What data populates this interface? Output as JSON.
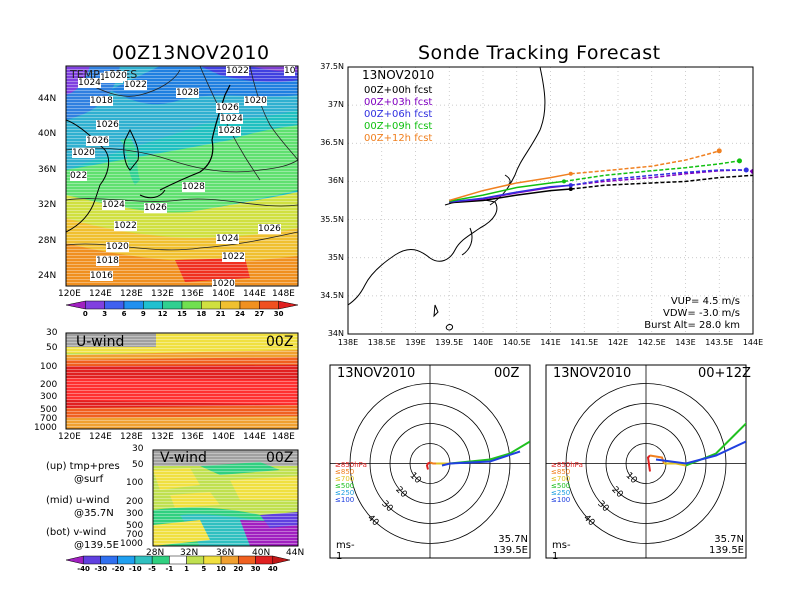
{
  "titles": {
    "left": "00Z13NOV2010",
    "right": "Sonde Tracking Forecast"
  },
  "map_panel": {
    "label": "TEMP+PRES",
    "lon_ticks": [
      "120E",
      "124E",
      "128E",
      "132E",
      "136E",
      "140E",
      "144E",
      "148E"
    ],
    "lat_ticks": [
      "44N",
      "40N",
      "36N",
      "32N",
      "28N",
      "24N"
    ],
    "isobar_labels": [
      "1020",
      "1022",
      "1018",
      "1026",
      "1028",
      "1026",
      "1024",
      "1028",
      "1020",
      "1026",
      "1020",
      "022",
      "1024",
      "1026",
      "1028",
      "1022",
      "1024",
      "1026",
      "1020",
      "1018",
      "1016",
      "1024",
      "1022",
      "1020",
      "1022",
      "1020",
      "10"
    ],
    "colorbar": {
      "ticks": [
        "0",
        "3",
        "6",
        "9",
        "12",
        "15",
        "18",
        "21",
        "24",
        "27",
        "30"
      ],
      "colors": [
        "#a020c0",
        "#8040e0",
        "#4060f0",
        "#2090f0",
        "#20c0d0",
        "#30d090",
        "#70e050",
        "#d0e040",
        "#f0c030",
        "#f09020",
        "#f05020",
        "#e02020"
      ]
    }
  },
  "uwind_panel": {
    "title": "U-wind",
    "time": "00Z",
    "y_ticks": [
      "30",
      "50",
      "100",
      "200",
      "300",
      "500",
      "700",
      "1000"
    ],
    "x_ticks": [
      "120E",
      "124E",
      "128E",
      "132E",
      "136E",
      "140E",
      "144E",
      "148E"
    ]
  },
  "vwind_panel": {
    "title": "V-wind",
    "time": "00Z",
    "y_ticks": [
      "30",
      "50",
      "100",
      "200",
      "300",
      "500",
      "700",
      "1000"
    ],
    "x_ticks": [
      "28N",
      "32N",
      "36N",
      "40N",
      "44N"
    ],
    "colorbar": {
      "ticks": [
        "-40",
        "-30",
        "-20",
        "-10",
        "-5",
        "-1",
        "1",
        "5",
        "10",
        "20",
        "30",
        "40"
      ],
      "colors": [
        "#a020c0",
        "#6040e0",
        "#3070f0",
        "#20a0f0",
        "#30c0c0",
        "#30d080",
        "#ffffff",
        "#c0e050",
        "#f0e040",
        "#f0a030",
        "#f06020",
        "#e02020",
        "#c01818"
      ]
    }
  },
  "notes": {
    "l1": "(up) tmp+pres",
    "l2": "@surf",
    "l3": "(mid) u-wind",
    "l4": "@35.7N",
    "l5": "(bot) v-wind",
    "l6": "@139.5E"
  },
  "track_panel": {
    "date": "13NOV2010",
    "legend": [
      {
        "label": "00Z+00h fcst",
        "color": "#000000"
      },
      {
        "label": "00Z+03h fcst",
        "color": "#8000c0"
      },
      {
        "label": "00Z+06h fcst",
        "color": "#3030e0"
      },
      {
        "label": "00Z+09h fcst",
        "color": "#10c010"
      },
      {
        "label": "00Z+12h fcst",
        "color": "#f08020"
      }
    ],
    "params": {
      "vup": "VUP= 4.5 m/s",
      "vdw": "VDW= -3.0 m/s",
      "burst": "Burst Alt= 28.0 km"
    },
    "x_ticks": [
      "138E",
      "138.5E",
      "139E",
      "139.5E",
      "140E",
      "140.5E",
      "141E",
      "141.5E",
      "142E",
      "142.5E",
      "143E",
      "143.5E",
      "144E"
    ],
    "y_ticks": [
      "37.5N",
      "37N",
      "36.5N",
      "36N",
      "35.5N",
      "35N",
      "34.5N",
      "34N"
    ]
  },
  "polar_left": {
    "date": "13NOV2010",
    "time": "00Z",
    "ring_labels": [
      "10",
      "20",
      "30",
      "40"
    ],
    "levels": [
      {
        "label": "≥850hPa",
        "color": "#e02020"
      },
      {
        "label": "≤850",
        "color": "#f08020"
      },
      {
        "label": "≤700",
        "color": "#e0c020"
      },
      {
        "label": "≤500",
        "color": "#20c020"
      },
      {
        "label": "≤250",
        "color": "#20a0e0"
      },
      {
        "label": "≤100",
        "color": "#2040e0"
      }
    ],
    "units": "ms-1",
    "lat": "35.7N",
    "lon": "139.5E"
  },
  "polar_right": {
    "date": "13NOV2010",
    "time": "00+12Z",
    "ring_labels": [
      "10",
      "20",
      "30",
      "40"
    ],
    "levels": [
      {
        "label": "≥850hPa",
        "color": "#e02020"
      },
      {
        "label": "≤850",
        "color": "#f08020"
      },
      {
        "label": "≤700",
        "color": "#e0c020"
      },
      {
        "label": "≤500",
        "color": "#20c020"
      },
      {
        "label": "≤250",
        "color": "#20a0e0"
      },
      {
        "label": "≤100",
        "color": "#2040e0"
      }
    ],
    "units": "ms-1",
    "lat": "35.7N",
    "lon": "139.5E"
  },
  "chart_data": {
    "type": "line",
    "title": "Sonde Tracking Forecast",
    "xlim": [
      138,
      144
    ],
    "ylim": [
      34,
      37.5
    ],
    "series": [
      {
        "name": "00Z+00h fcst",
        "color": "#000000",
        "x": [
          139.5,
          140.0,
          140.5,
          141.0,
          141.3,
          141.8,
          142.5,
          143.0,
          143.5,
          144.0,
          144.2
        ],
        "y": [
          35.72,
          35.75,
          35.82,
          35.88,
          35.9,
          35.95,
          35.98,
          36.0,
          36.05,
          36.08,
          36.07
        ]
      },
      {
        "name": "00Z+03h fcst",
        "color": "#8000c0",
        "x": [
          139.5,
          140.0,
          140.5,
          141.0,
          141.3,
          141.8,
          142.5,
          143.0,
          143.5,
          143.8,
          144.0
        ],
        "y": [
          35.73,
          35.77,
          35.85,
          35.92,
          35.95,
          36.0,
          36.05,
          36.1,
          36.14,
          36.15,
          36.13
        ]
      },
      {
        "name": "00Z+06h fcst",
        "color": "#3030e0",
        "x": [
          139.5,
          140.0,
          140.5,
          141.0,
          141.3,
          141.8,
          142.5,
          143.0,
          143.5,
          143.9
        ],
        "y": [
          35.73,
          35.78,
          35.86,
          35.93,
          35.95,
          36.02,
          36.08,
          36.12,
          36.15,
          36.15
        ]
      },
      {
        "name": "00Z+09h fcst",
        "color": "#10c010",
        "x": [
          139.5,
          140.0,
          140.5,
          141.0,
          141.2,
          141.8,
          142.5,
          143.0,
          143.5,
          143.8
        ],
        "y": [
          35.74,
          35.82,
          35.92,
          35.98,
          36.0,
          36.08,
          36.14,
          36.18,
          36.23,
          36.27
        ]
      },
      {
        "name": "00Z+12h fcst",
        "color": "#f08020",
        "x": [
          139.5,
          140.0,
          140.5,
          141.0,
          141.3,
          141.8,
          142.5,
          143.0,
          143.3,
          143.5
        ],
        "y": [
          35.75,
          35.88,
          35.98,
          36.05,
          36.1,
          36.14,
          36.2,
          36.28,
          36.35,
          36.4
        ]
      }
    ]
  }
}
